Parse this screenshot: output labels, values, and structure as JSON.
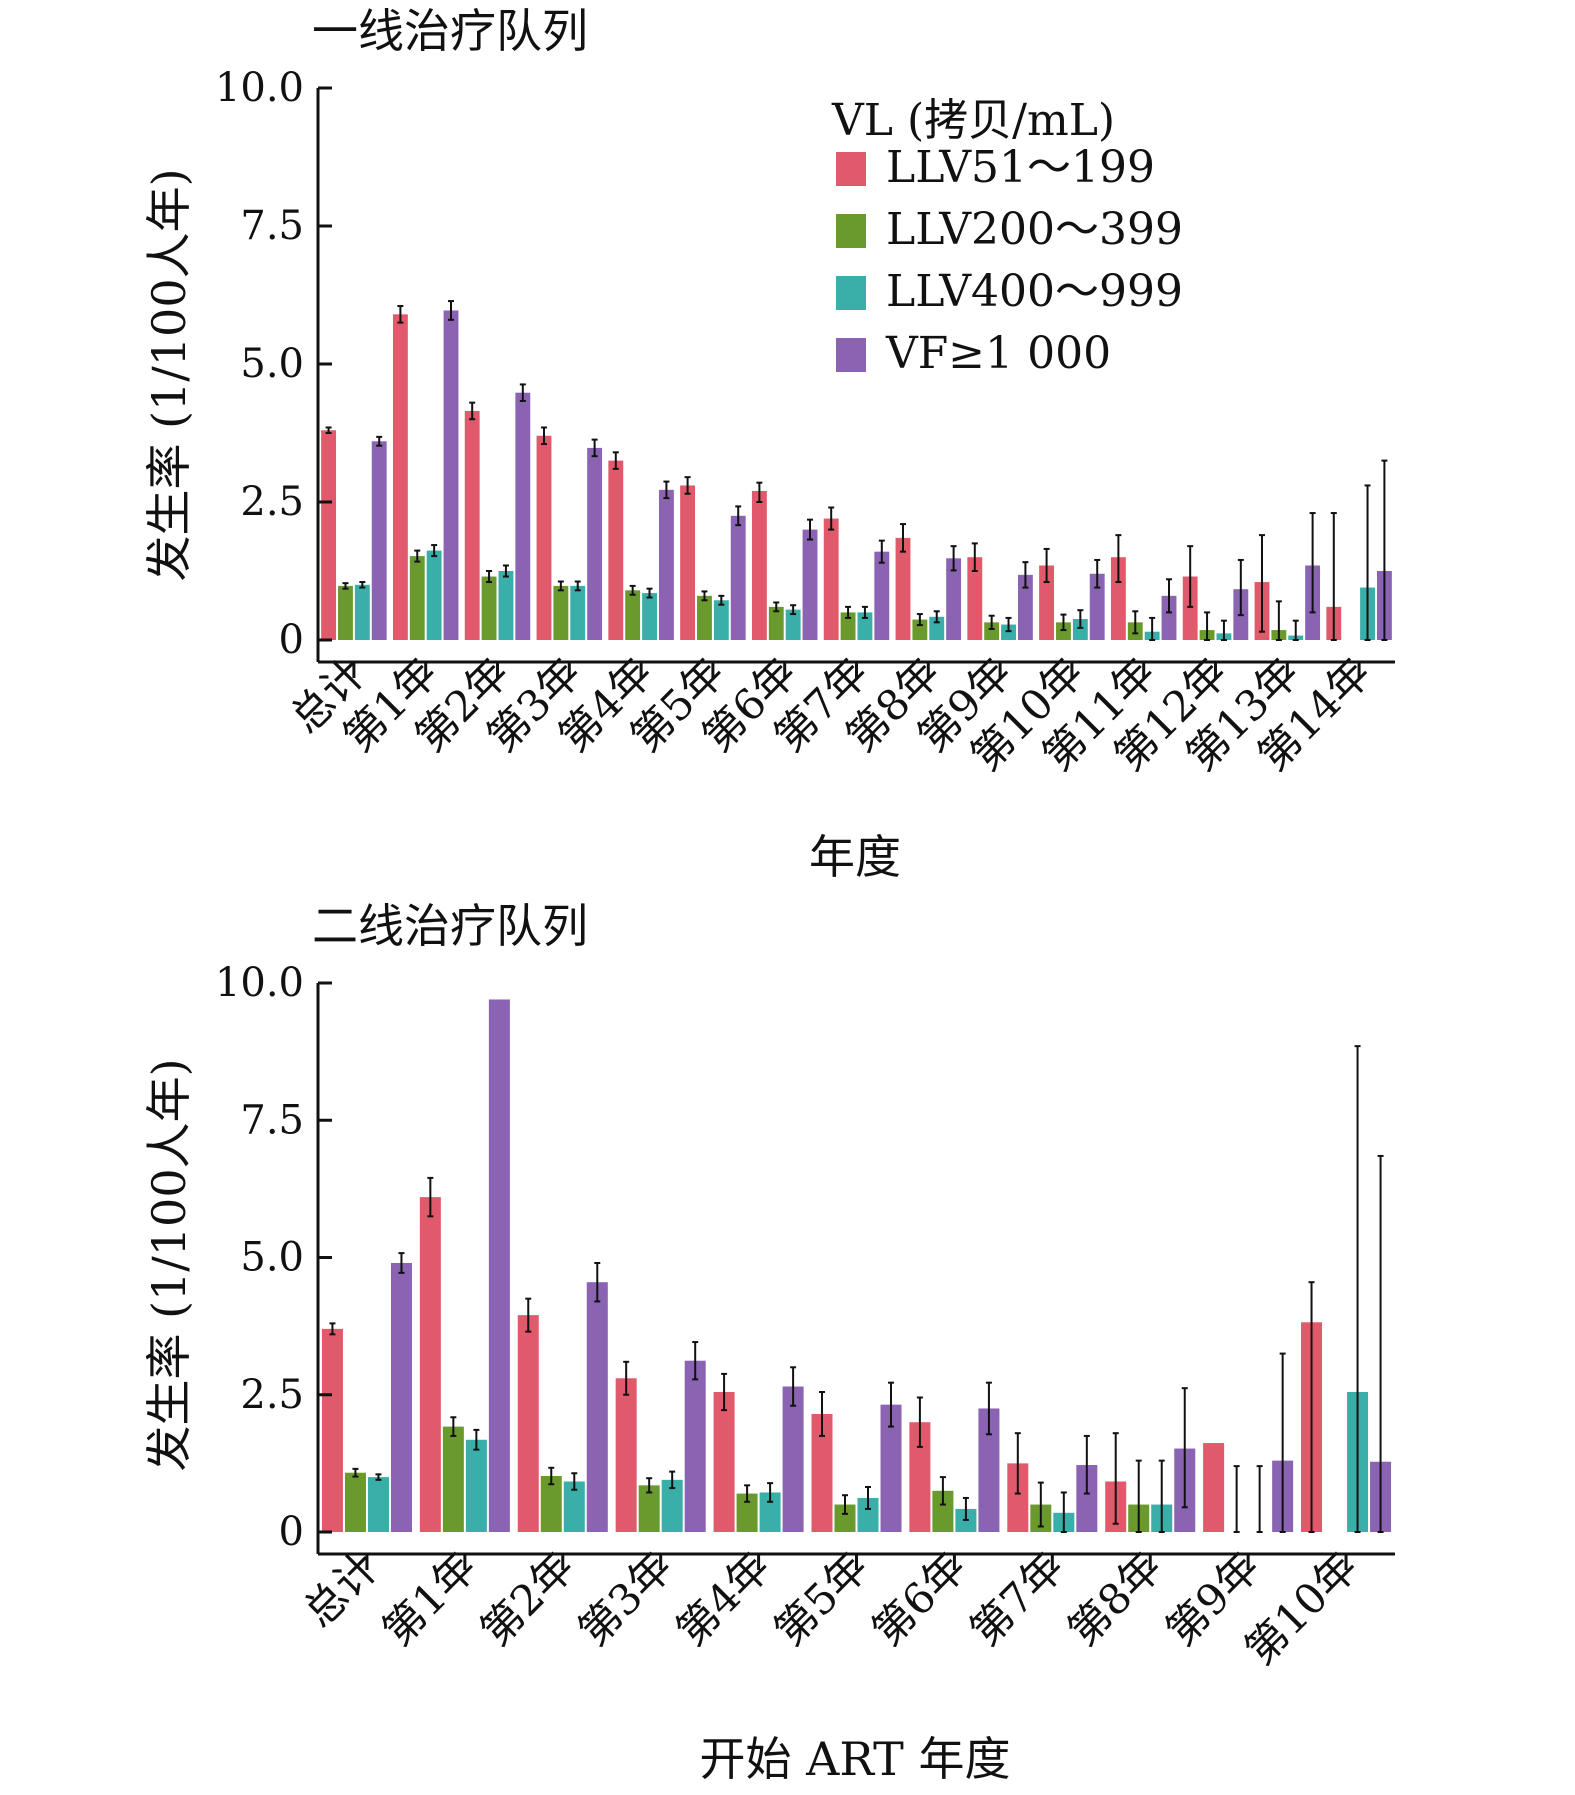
{
  "legend": {
    "title": "VL (拷贝/mL)",
    "items": [
      {
        "label": "LLV51～199",
        "color": "#e05a6b"
      },
      {
        "label": "LLV200～399",
        "color": "#6a9a2e"
      },
      {
        "label": "LLV400～999",
        "color": "#3aaea8"
      },
      {
        "label": "VF≥1 000",
        "color": "#8a63b2"
      }
    ]
  },
  "chart_data": [
    {
      "type": "bar",
      "title": "一线治疗队列",
      "xlabel": "年度",
      "ylabel": "发生率 (1/100人年)",
      "ylim": [
        0,
        10
      ],
      "yticks": [
        "0",
        "2.5",
        "5.0",
        "7.5",
        "10.0"
      ],
      "categories": [
        "总计",
        "第1年",
        "第2年",
        "第3年",
        "第4年",
        "第5年",
        "第6年",
        "第7年",
        "第8年",
        "第9年",
        "第10年",
        "第11年",
        "第12年",
        "第13年",
        "第14年"
      ],
      "series": [
        {
          "name": "LLV51～199",
          "values": [
            3.8,
            5.9,
            4.15,
            3.7,
            3.25,
            2.8,
            2.7,
            2.2,
            1.85,
            1.5,
            1.35,
            1.5,
            1.15,
            1.05,
            0.6
          ],
          "err_low": [
            3.75,
            5.75,
            4.0,
            3.55,
            3.1,
            2.65,
            2.5,
            2.0,
            1.6,
            1.25,
            1.05,
            1.05,
            0.6,
            0.15,
            0.0
          ],
          "err_high": [
            3.85,
            6.05,
            4.3,
            3.85,
            3.4,
            2.95,
            2.85,
            2.4,
            2.1,
            1.75,
            1.65,
            1.9,
            1.7,
            1.9,
            2.3
          ]
        },
        {
          "name": "LLV200～399",
          "values": [
            0.98,
            1.52,
            1.15,
            0.98,
            0.9,
            0.8,
            0.6,
            0.5,
            0.37,
            0.32,
            0.32,
            0.32,
            0.18,
            0.18,
            0.0
          ],
          "err_low": [
            0.93,
            1.42,
            1.05,
            0.9,
            0.82,
            0.72,
            0.52,
            0.4,
            0.27,
            0.2,
            0.18,
            0.12,
            0.0,
            0.0,
            0.0
          ],
          "err_high": [
            1.03,
            1.62,
            1.25,
            1.06,
            0.98,
            0.88,
            0.68,
            0.6,
            0.47,
            0.44,
            0.46,
            0.52,
            0.5,
            0.7,
            0.0
          ]
        },
        {
          "name": "LLV400～999",
          "values": [
            1.0,
            1.62,
            1.25,
            0.98,
            0.85,
            0.72,
            0.55,
            0.5,
            0.42,
            0.28,
            0.38,
            0.15,
            0.12,
            0.08,
            0.95
          ],
          "err_low": [
            0.95,
            1.52,
            1.15,
            0.9,
            0.77,
            0.64,
            0.47,
            0.4,
            0.32,
            0.16,
            0.22,
            0.0,
            0.0,
            0.0,
            0.0
          ],
          "err_high": [
            1.05,
            1.72,
            1.35,
            1.06,
            0.93,
            0.8,
            0.63,
            0.6,
            0.52,
            0.4,
            0.54,
            0.4,
            0.35,
            0.35,
            2.8
          ]
        },
        {
          "name": "VF≥1 000",
          "values": [
            3.6,
            5.97,
            4.48,
            3.48,
            2.72,
            2.25,
            2.0,
            1.6,
            1.48,
            1.18,
            1.2,
            0.8,
            0.92,
            1.35,
            1.25
          ],
          "err_low": [
            3.52,
            5.8,
            4.33,
            3.33,
            2.57,
            2.08,
            1.82,
            1.4,
            1.26,
            0.95,
            0.95,
            0.5,
            0.45,
            0.5,
            0.0
          ],
          "err_high": [
            3.68,
            6.14,
            4.63,
            3.63,
            2.87,
            2.42,
            2.18,
            1.8,
            1.7,
            1.41,
            1.45,
            1.1,
            1.45,
            2.3,
            3.25
          ]
        }
      ]
    },
    {
      "type": "bar",
      "title": "二线治疗队列",
      "xlabel": "开始 ART 年度",
      "ylabel": "发生率 (1/100人年)",
      "ylim": [
        0,
        10
      ],
      "yticks": [
        "0",
        "2.5",
        "5.0",
        "7.5",
        "10.0"
      ],
      "categories": [
        "总计",
        "第1年",
        "第2年",
        "第3年",
        "第4年",
        "第5年",
        "第6年",
        "第7年",
        "第8年",
        "第9年",
        "第10年"
      ],
      "series": [
        {
          "name": "LLV51～199",
          "values": [
            3.7,
            6.1,
            3.95,
            2.8,
            2.55,
            2.15,
            2.0,
            1.25,
            0.92,
            1.62,
            3.82
          ],
          "err_low": [
            3.6,
            5.75,
            3.65,
            2.5,
            2.22,
            1.75,
            1.55,
            0.7,
            0.15,
            0.0,
            0.0
          ],
          "err_high": [
            3.8,
            6.45,
            4.25,
            3.1,
            2.88,
            2.55,
            2.45,
            1.8,
            1.8,
            0.0,
            4.55
          ]
        },
        {
          "name": "LLV200～399",
          "values": [
            1.08,
            1.92,
            1.02,
            0.85,
            0.7,
            0.5,
            0.75,
            0.5,
            0.5,
            0.0,
            0.0
          ],
          "err_low": [
            1.01,
            1.75,
            0.87,
            0.72,
            0.55,
            0.33,
            0.5,
            0.1,
            0.0,
            0.0,
            0.0
          ],
          "err_high": [
            1.15,
            2.09,
            1.17,
            0.98,
            0.85,
            0.67,
            1.0,
            0.9,
            1.3,
            1.2,
            0.0
          ]
        },
        {
          "name": "LLV400～999",
          "values": [
            1.0,
            1.68,
            0.92,
            0.95,
            0.72,
            0.62,
            0.42,
            0.35,
            0.5,
            0.0,
            2.55
          ],
          "err_low": [
            0.95,
            1.5,
            0.77,
            0.8,
            0.55,
            0.42,
            0.22,
            0.0,
            0.0,
            0.0,
            0.0
          ],
          "err_high": [
            1.05,
            1.86,
            1.07,
            1.1,
            0.89,
            0.82,
            0.62,
            0.72,
            1.3,
            1.2,
            8.85
          ]
        },
        {
          "name": "VF≥1 000",
          "values": [
            4.9,
            9.7,
            4.55,
            3.12,
            2.65,
            2.32,
            2.25,
            1.22,
            1.52,
            1.3,
            1.28
          ],
          "err_low": [
            4.72,
            9.7,
            4.2,
            2.78,
            2.3,
            1.92,
            1.78,
            0.7,
            0.45,
            0.0,
            0.0
          ],
          "err_high": [
            5.08,
            9.7,
            4.9,
            3.46,
            3.0,
            2.72,
            2.72,
            1.75,
            2.62,
            3.25,
            6.85
          ]
        }
      ]
    }
  ]
}
